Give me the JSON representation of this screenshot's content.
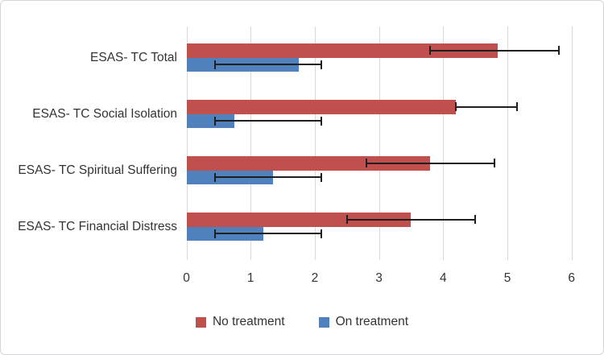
{
  "chart_data": {
    "type": "bar",
    "orientation": "horizontal",
    "title": "",
    "categories": [
      "ESAS- TC Total",
      "ESAS- TC Social Isolation",
      "ESAS- TC Spiritual Suffering",
      "ESAS- TC Financial Distress"
    ],
    "series": [
      {
        "name": "No treatment",
        "color": "#C0504D",
        "values": [
          4.85,
          4.2,
          3.8,
          3.5
        ],
        "error_low": [
          3.8,
          4.2,
          2.8,
          2.5
        ],
        "error_high": [
          5.8,
          5.15,
          4.8,
          4.5
        ]
      },
      {
        "name": "On treatment",
        "color": "#4F81BD",
        "values": [
          1.75,
          0.75,
          1.35,
          1.2
        ],
        "error_low": [
          0.45,
          0.45,
          0.45,
          0.45
        ],
        "error_high": [
          2.1,
          2.1,
          2.1,
          2.1
        ]
      }
    ],
    "x_ticks": [
      "0",
      "1",
      "2",
      "3",
      "4",
      "5",
      "6"
    ],
    "xlim": [
      0,
      6
    ],
    "grid": "vertical-only",
    "legend_position": "bottom",
    "colors": {
      "gridline": "#d9d9d9",
      "error_bar": "#1f1f1f",
      "text": "#333333",
      "background": "#ffffff"
    }
  }
}
